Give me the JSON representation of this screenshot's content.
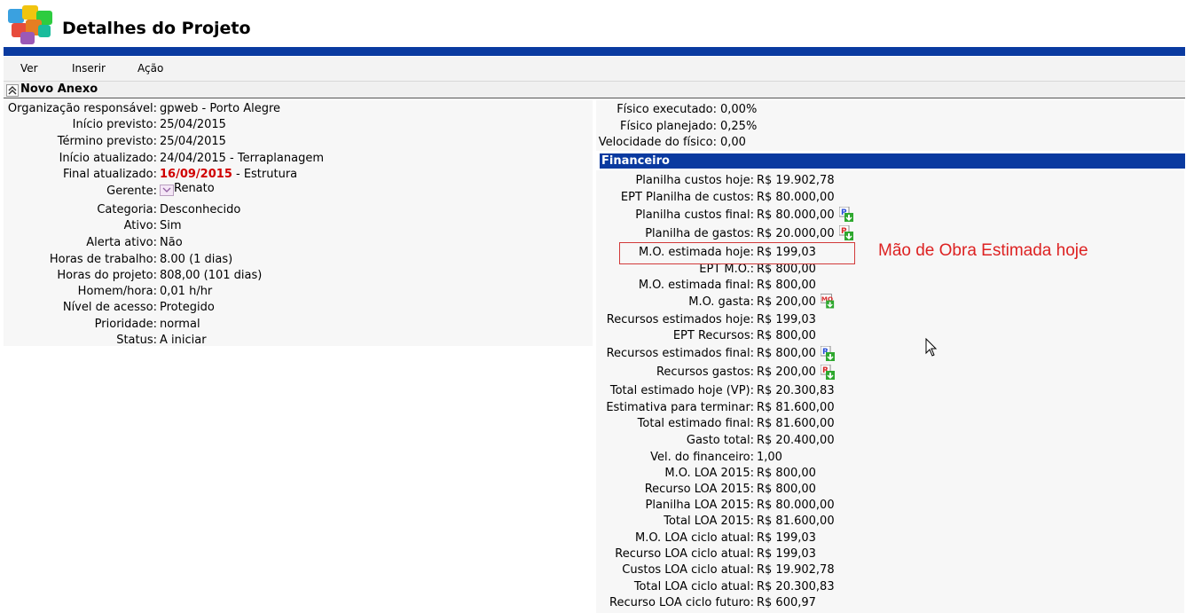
{
  "header": {
    "title": "Detalhes do Projeto"
  },
  "menu": [
    "Ver",
    "Inserir",
    "Ação"
  ],
  "anexo": {
    "label": "Novo Anexo"
  },
  "left_fields": [
    {
      "label": "Organização responsável:",
      "value": "gpweb - Porto Alegre"
    },
    {
      "label": "Início previsto:",
      "value": "25/04/2015"
    },
    {
      "label": "Término previsto:",
      "value": "25/04/2015"
    },
    {
      "label": "Início atualizado:",
      "value": "24/04/2015 - Terraplanagem"
    },
    {
      "label": "Final atualizado:",
      "value_red": "16/09/2015",
      "value": " - Estrutura"
    },
    {
      "label": "Gerente:",
      "value": "Renato"
    },
    {
      "label": "Categoria:",
      "value": "Desconhecido"
    },
    {
      "label": "Ativo:",
      "value": "Sim"
    },
    {
      "label": "Alerta ativo:",
      "value": "Não"
    },
    {
      "label": "Horas de trabalho:",
      "value": "8.00 (1 dias)"
    },
    {
      "label": "Horas do projeto:",
      "value": "808,00 (101 dias)"
    },
    {
      "label": "Homem/hora:",
      "value": "0,01 h/hr"
    },
    {
      "label": "Nível de acesso:",
      "value": "Protegido"
    },
    {
      "label": "Prioridade:",
      "value": "normal"
    },
    {
      "label": "Status:",
      "value": "A iniciar"
    }
  ],
  "right_top": [
    {
      "label": "Físico executado:",
      "value": "0,00%"
    },
    {
      "label": "Físico planejado:",
      "value": "0,25%"
    },
    {
      "label": "Velocidade do físico:",
      "value": "0,00"
    }
  ],
  "financeiro": {
    "header": "Financeiro",
    "rows": [
      {
        "label": "Planilha custos hoje:",
        "value": "R$ 19.902,78"
      },
      {
        "label": "EPT Planilha de custos:",
        "value": "R$ 80.000,00"
      },
      {
        "label": "Planilha custos final:",
        "value": "R$ 80.000,00"
      },
      {
        "label": "Planilha de gastos:",
        "value": "R$ 20.000,00"
      },
      {
        "label": "M.O. estimada hoje:",
        "value": "R$ 199,03"
      },
      {
        "label": "EPT M.O.:",
        "value": "R$ 800,00"
      },
      {
        "label": "M.O. estimada final:",
        "value": "R$ 800,00"
      },
      {
        "label": "M.O. gasta:",
        "value": "R$ 200,00"
      },
      {
        "label": "Recursos estimados hoje:",
        "value": "R$ 199,03"
      },
      {
        "label": "EPT Recursos:",
        "value": "R$ 800,00"
      },
      {
        "label": "Recursos estimados final:",
        "value": "R$ 800,00"
      },
      {
        "label": "Recursos gastos:",
        "value": "R$ 200,00"
      },
      {
        "label": "Total estimado hoje (VP):",
        "value": "R$ 20.300,83"
      },
      {
        "label": "Estimativa para terminar:",
        "value": "R$ 81.600,00"
      },
      {
        "label": "Total estimado final:",
        "value": "R$ 81.600,00"
      },
      {
        "label": "Gasto total:",
        "value": "R$ 20.400,00"
      },
      {
        "label": "Vel. do financeiro:",
        "value": "1,00"
      },
      {
        "label": "M.O. LOA 2015:",
        "value": "R$ 800,00"
      },
      {
        "label": "Recurso LOA 2015:",
        "value": "R$ 800,00"
      },
      {
        "label": "Planilha LOA 2015:",
        "value": "R$ 80.000,00"
      },
      {
        "label": "Total LOA 2015:",
        "value": "R$ 81.600,00"
      },
      {
        "label": "M.O. LOA ciclo atual:",
        "value": "R$ 199,03"
      },
      {
        "label": "Recurso LOA ciclo atual:",
        "value": "R$ 199,03"
      },
      {
        "label": "Custos LOA ciclo atual:",
        "value": "R$ 19.902,78"
      },
      {
        "label": "Total LOA ciclo atual:",
        "value": "R$ 20.300,83"
      },
      {
        "label": "Recurso LOA ciclo futuro:",
        "value": "R$ 600,97"
      }
    ]
  },
  "icons": {
    "planilha_final": {
      "letter": "P",
      "color": "#2a4fd6"
    },
    "planilha_gastos": {
      "letter": "P",
      "color": "#d62a2a"
    },
    "mo_gasta": {
      "letter": "MO",
      "color": "#d62a2a"
    },
    "recursos_final": {
      "letter": "R",
      "color": "#2a4fd6"
    },
    "recursos_gastos": {
      "letter": "R",
      "color": "#d62a2a"
    }
  },
  "annotation": {
    "text": "Mão de Obra Estimada hoje",
    "color": "#d22222"
  }
}
